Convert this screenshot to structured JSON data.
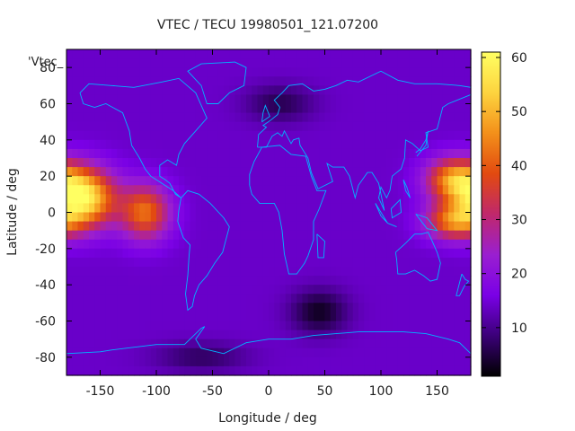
{
  "chart_data": {
    "type": "heatmap",
    "title": "VTEC / TECU 19980501_121.07200",
    "xlabel": "Longitude / deg",
    "ylabel": "Latitude / deg",
    "legend_key": "'Vtec_",
    "xlim": [
      -180,
      180
    ],
    "ylim": [
      -90,
      90
    ],
    "x_ticks": [
      -150,
      -100,
      -50,
      0,
      50,
      100,
      150
    ],
    "y_ticks": [
      -80,
      -60,
      -40,
      -20,
      0,
      20,
      40,
      60,
      80
    ],
    "colorbar": {
      "range": [
        1,
        61
      ],
      "ticks": [
        10,
        20,
        30,
        40,
        50,
        60
      ],
      "palette": [
        "#000000",
        "#3b0078",
        "#7a00e6",
        "#9a1fd0",
        "#c0286b",
        "#e24a10",
        "#f3901a",
        "#fdd43f",
        "#ffff62"
      ]
    },
    "grid_resolution_deg": {
      "lon": 5,
      "lat": 5
    },
    "value_model": {
      "background": 14,
      "peaks": [
        {
          "lon": -165,
          "lat": 8,
          "value": 58,
          "lon_spread": 28,
          "lat_spread": 16
        },
        {
          "lon": -110,
          "lat": 0,
          "value": 42,
          "lon_spread": 22,
          "lat_spread": 15
        },
        {
          "lon": 165,
          "lat": 18,
          "value": 45,
          "lon_spread": 25,
          "lat_spread": 12
        },
        {
          "lon": 165,
          "lat": -5,
          "value": 42,
          "lon_spread": 25,
          "lat_spread": 10
        }
      ],
      "troughs": [
        {
          "lon": 45,
          "lat": -55,
          "value": 3,
          "lon_spread": 25,
          "lat_spread": 12
        },
        {
          "lon": 10,
          "lat": 60,
          "value": 6,
          "lon_spread": 30,
          "lat_spread": 10
        },
        {
          "lon": -60,
          "lat": -80,
          "value": 7,
          "lon_spread": 40,
          "lat_spread": 8
        }
      ]
    },
    "coastline_color": "#00b4ff",
    "coastlines": [
      [
        [
          -168,
          66
        ],
        [
          -160,
          71
        ],
        [
          -140,
          70
        ],
        [
          -120,
          69
        ],
        [
          -95,
          72
        ],
        [
          -80,
          74
        ],
        [
          -65,
          66
        ],
        [
          -55,
          52
        ],
        [
          -65,
          45
        ],
        [
          -75,
          38
        ],
        [
          -80,
          32
        ],
        [
          -82,
          26
        ],
        [
          -90,
          29
        ],
        [
          -97,
          26
        ],
        [
          -97,
          20
        ],
        [
          -92,
          18
        ],
        [
          -88,
          16
        ],
        [
          -83,
          10
        ],
        [
          -78,
          8
        ],
        [
          -85,
          12
        ],
        [
          -95,
          16
        ],
        [
          -105,
          20
        ],
        [
          -110,
          24
        ],
        [
          -115,
          30
        ],
        [
          -122,
          37
        ],
        [
          -124,
          45
        ],
        [
          -130,
          55
        ],
        [
          -145,
          60
        ],
        [
          -155,
          58
        ],
        [
          -165,
          60
        ],
        [
          -168,
          66
        ]
      ],
      [
        [
          -78,
          8
        ],
        [
          -72,
          12
        ],
        [
          -62,
          10
        ],
        [
          -52,
          5
        ],
        [
          -40,
          -3
        ],
        [
          -35,
          -8
        ],
        [
          -38,
          -15
        ],
        [
          -41,
          -22
        ],
        [
          -48,
          -28
        ],
        [
          -55,
          -35
        ],
        [
          -62,
          -40
        ],
        [
          -66,
          -46
        ],
        [
          -68,
          -52
        ],
        [
          -72,
          -54
        ],
        [
          -74,
          -45
        ],
        [
          -72,
          -35
        ],
        [
          -71,
          -25
        ],
        [
          -70,
          -18
        ],
        [
          -76,
          -14
        ],
        [
          -81,
          -5
        ],
        [
          -80,
          1
        ],
        [
          -78,
          8
        ]
      ],
      [
        [
          -17,
          15
        ],
        [
          -17,
          21
        ],
        [
          -13,
          28
        ],
        [
          -6,
          36
        ],
        [
          10,
          37
        ],
        [
          20,
          32
        ],
        [
          33,
          31
        ],
        [
          38,
          20
        ],
        [
          43,
          12
        ],
        [
          51,
          12
        ],
        [
          45,
          2
        ],
        [
          40,
          -5
        ],
        [
          40,
          -15
        ],
        [
          35,
          -24
        ],
        [
          32,
          -28
        ],
        [
          25,
          -34
        ],
        [
          18,
          -34
        ],
        [
          14,
          -23
        ],
        [
          12,
          -10
        ],
        [
          9,
          0
        ],
        [
          5,
          5
        ],
        [
          -8,
          5
        ],
        [
          -15,
          10
        ],
        [
          -17,
          15
        ]
      ],
      [
        [
          -10,
          36
        ],
        [
          -9,
          43
        ],
        [
          -2,
          47
        ],
        [
          -5,
          48
        ],
        [
          2,
          51
        ],
        [
          8,
          54
        ],
        [
          10,
          58
        ],
        [
          5,
          62
        ],
        [
          12,
          66
        ],
        [
          18,
          70
        ],
        [
          30,
          71
        ],
        [
          40,
          67
        ],
        [
          50,
          68
        ],
        [
          60,
          70
        ],
        [
          70,
          73
        ],
        [
          80,
          72
        ],
        [
          100,
          78
        ],
        [
          115,
          73
        ],
        [
          130,
          71
        ],
        [
          150,
          71
        ],
        [
          170,
          70
        ],
        [
          180,
          69
        ],
        [
          180,
          65
        ],
        [
          160,
          60
        ],
        [
          155,
          58
        ],
        [
          150,
          46
        ],
        [
          140,
          44
        ],
        [
          142,
          36
        ],
        [
          135,
          34
        ],
        [
          128,
          38
        ],
        [
          122,
          40
        ],
        [
          121,
          30
        ],
        [
          118,
          24
        ],
        [
          110,
          20
        ],
        [
          108,
          12
        ],
        [
          105,
          8
        ],
        [
          100,
          14
        ],
        [
          98,
          8
        ],
        [
          103,
          1
        ],
        [
          98,
          16
        ],
        [
          92,
          22
        ],
        [
          88,
          22
        ],
        [
          80,
          15
        ],
        [
          77,
          8
        ],
        [
          72,
          20
        ],
        [
          67,
          25
        ],
        [
          57,
          25
        ],
        [
          52,
          27
        ],
        [
          57,
          17
        ],
        [
          44,
          13
        ],
        [
          38,
          22
        ],
        [
          35,
          30
        ],
        [
          28,
          37
        ],
        [
          27,
          41
        ],
        [
          22,
          40
        ],
        [
          20,
          38
        ],
        [
          14,
          45
        ],
        [
          12,
          42
        ],
        [
          8,
          44
        ],
        [
          3,
          42
        ],
        [
          -2,
          36
        ],
        [
          -10,
          36
        ]
      ],
      [
        [
          113,
          -22
        ],
        [
          114,
          -26
        ],
        [
          115,
          -34
        ],
        [
          122,
          -34
        ],
        [
          130,
          -32
        ],
        [
          138,
          -35
        ],
        [
          144,
          -38
        ],
        [
          150,
          -37
        ],
        [
          153,
          -28
        ],
        [
          150,
          -22
        ],
        [
          145,
          -15
        ],
        [
          142,
          -11
        ],
        [
          136,
          -12
        ],
        [
          130,
          -12
        ],
        [
          122,
          -17
        ],
        [
          113,
          -22
        ]
      ],
      [
        [
          -180,
          -78
        ],
        [
          -150,
          -77
        ],
        [
          -140,
          -76
        ],
        [
          -100,
          -73
        ],
        [
          -75,
          -73
        ],
        [
          -60,
          -64
        ],
        [
          -57,
          -63
        ],
        [
          -65,
          -70
        ],
        [
          -60,
          -75
        ],
        [
          -40,
          -78
        ],
        [
          -20,
          -72
        ],
        [
          0,
          -70
        ],
        [
          20,
          -70
        ],
        [
          40,
          -68
        ],
        [
          60,
          -67
        ],
        [
          80,
          -66
        ],
        [
          100,
          -66
        ],
        [
          120,
          -66
        ],
        [
          140,
          -67
        ],
        [
          160,
          -70
        ],
        [
          170,
          -72
        ],
        [
          180,
          -78
        ]
      ],
      [
        [
          -55,
          60
        ],
        [
          -45,
          60
        ],
        [
          -35,
          66
        ],
        [
          -22,
          70
        ],
        [
          -20,
          80
        ],
        [
          -30,
          83
        ],
        [
          -60,
          82
        ],
        [
          -72,
          78
        ],
        [
          -60,
          70
        ],
        [
          -55,
          60
        ]
      ],
      [
        [
          131,
          33
        ],
        [
          135,
          35
        ],
        [
          140,
          40
        ],
        [
          142,
          45
        ],
        [
          140,
          37
        ],
        [
          132,
          31
        ]
      ],
      [
        [
          -6,
          50
        ],
        [
          -5,
          55
        ],
        [
          -3,
          59
        ],
        [
          1,
          53
        ],
        [
          -6,
          50
        ]
      ],
      [
        [
          172,
          -34
        ],
        [
          175,
          -37
        ],
        [
          178,
          -38
        ],
        [
          174,
          -41
        ],
        [
          170,
          -46
        ],
        [
          167,
          -46
        ],
        [
          172,
          -34
        ]
      ],
      [
        [
          43,
          -12
        ],
        [
          50,
          -16
        ],
        [
          49,
          -25
        ],
        [
          44,
          -25
        ],
        [
          43,
          -12
        ]
      ],
      [
        [
          95,
          5
        ],
        [
          106,
          -6
        ],
        [
          100,
          -2
        ],
        [
          95,
          5
        ]
      ],
      [
        [
          110,
          -7
        ],
        [
          114,
          -8
        ],
        [
          106,
          -6
        ]
      ],
      [
        [
          109,
          2
        ],
        [
          117,
          7
        ],
        [
          118,
          0
        ],
        [
          110,
          -3
        ],
        [
          109,
          2
        ]
      ],
      [
        [
          131,
          -1
        ],
        [
          141,
          -3
        ],
        [
          150,
          -10
        ],
        [
          141,
          -9
        ],
        [
          131,
          -1
        ]
      ],
      [
        [
          120,
          18
        ],
        [
          122,
          12
        ],
        [
          126,
          8
        ],
        [
          123,
          14
        ],
        [
          120,
          18
        ]
      ]
    ]
  }
}
